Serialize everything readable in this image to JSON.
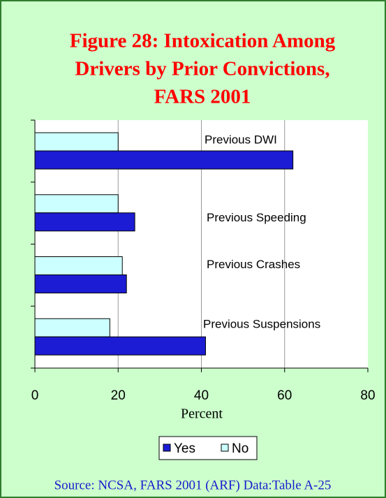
{
  "chart_data": {
    "type": "bar",
    "orientation": "horizontal",
    "title": [
      "Figure 28: Intoxication Among",
      "Drivers by Prior Convictions,",
      "FARS 2001"
    ],
    "categories": [
      "Previous DWI",
      "Previous Speeding",
      "Previous Crashes",
      "Previous Suspensions"
    ],
    "series": [
      {
        "name": "Yes",
        "color": "#1c1cd4",
        "values": [
          62,
          24,
          22,
          41
        ]
      },
      {
        "name": "No",
        "color": "#ccffff",
        "values": [
          20,
          20,
          21,
          18
        ]
      }
    ],
    "xlabel": "Percent",
    "xlim": [
      0,
      80
    ],
    "xticks": [
      0,
      20,
      40,
      60,
      80
    ],
    "grid": true,
    "legend": "bottom",
    "source": "Source: NCSA, FARS 2001 (ARF) Data:Table A-25"
  }
}
